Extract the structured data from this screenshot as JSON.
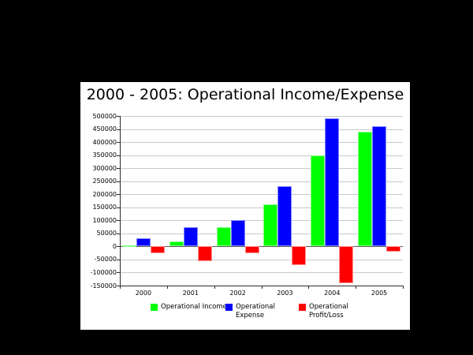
{
  "title": "2000 - 2005: Operational Income/Expense",
  "colors": {
    "background": "#000000",
    "panel": "#ffffff",
    "income": "#00ff00",
    "expense": "#0000ff",
    "profit_loss": "#ff0000",
    "gridline": "#c9c9c9",
    "zero_line": "#5a5a5a",
    "axis": "#2b2b2b"
  },
  "chart_data": {
    "type": "bar",
    "title": "2000 - 2005: Operational Income/Expense",
    "categories": [
      "2000",
      "2001",
      "2002",
      "2003",
      "2004",
      "2005"
    ],
    "series": [
      {
        "name": "Operational Income",
        "color": "#00ff00",
        "border": "#86ff86",
        "values": [
          5000,
          20000,
          75000,
          160000,
          350000,
          440000
        ]
      },
      {
        "name": "Operational Expense",
        "color": "#0000ff",
        "border": "#8686ff",
        "values": [
          30000,
          75000,
          100000,
          230000,
          490000,
          460000
        ]
      },
      {
        "name": "Operational Profit/Loss",
        "color": "#ff0000",
        "border": "#ff9090",
        "values": [
          -25000,
          -55000,
          -25000,
          -70000,
          -140000,
          -20000
        ]
      }
    ],
    "xlabel": "",
    "ylabel": "",
    "ylim": [
      -150000,
      500000
    ],
    "y_tick_step": 50000,
    "y_ticks": [
      "500000",
      "450000",
      "400000",
      "350000",
      "300000",
      "250000",
      "200000",
      "150000",
      "100000",
      "50000",
      "0",
      "-50000",
      "-100000",
      "-150000"
    ],
    "grid": true,
    "legend_position": "bottom"
  },
  "legend": {
    "items": [
      {
        "label_lines": [
          "Operational Income"
        ],
        "color": "#00ff00"
      },
      {
        "label_lines": [
          "Operational",
          "Expense"
        ],
        "color": "#0000ff"
      },
      {
        "label_lines": [
          "Operational",
          "Profit/Loss"
        ],
        "color": "#ff0000"
      }
    ]
  }
}
